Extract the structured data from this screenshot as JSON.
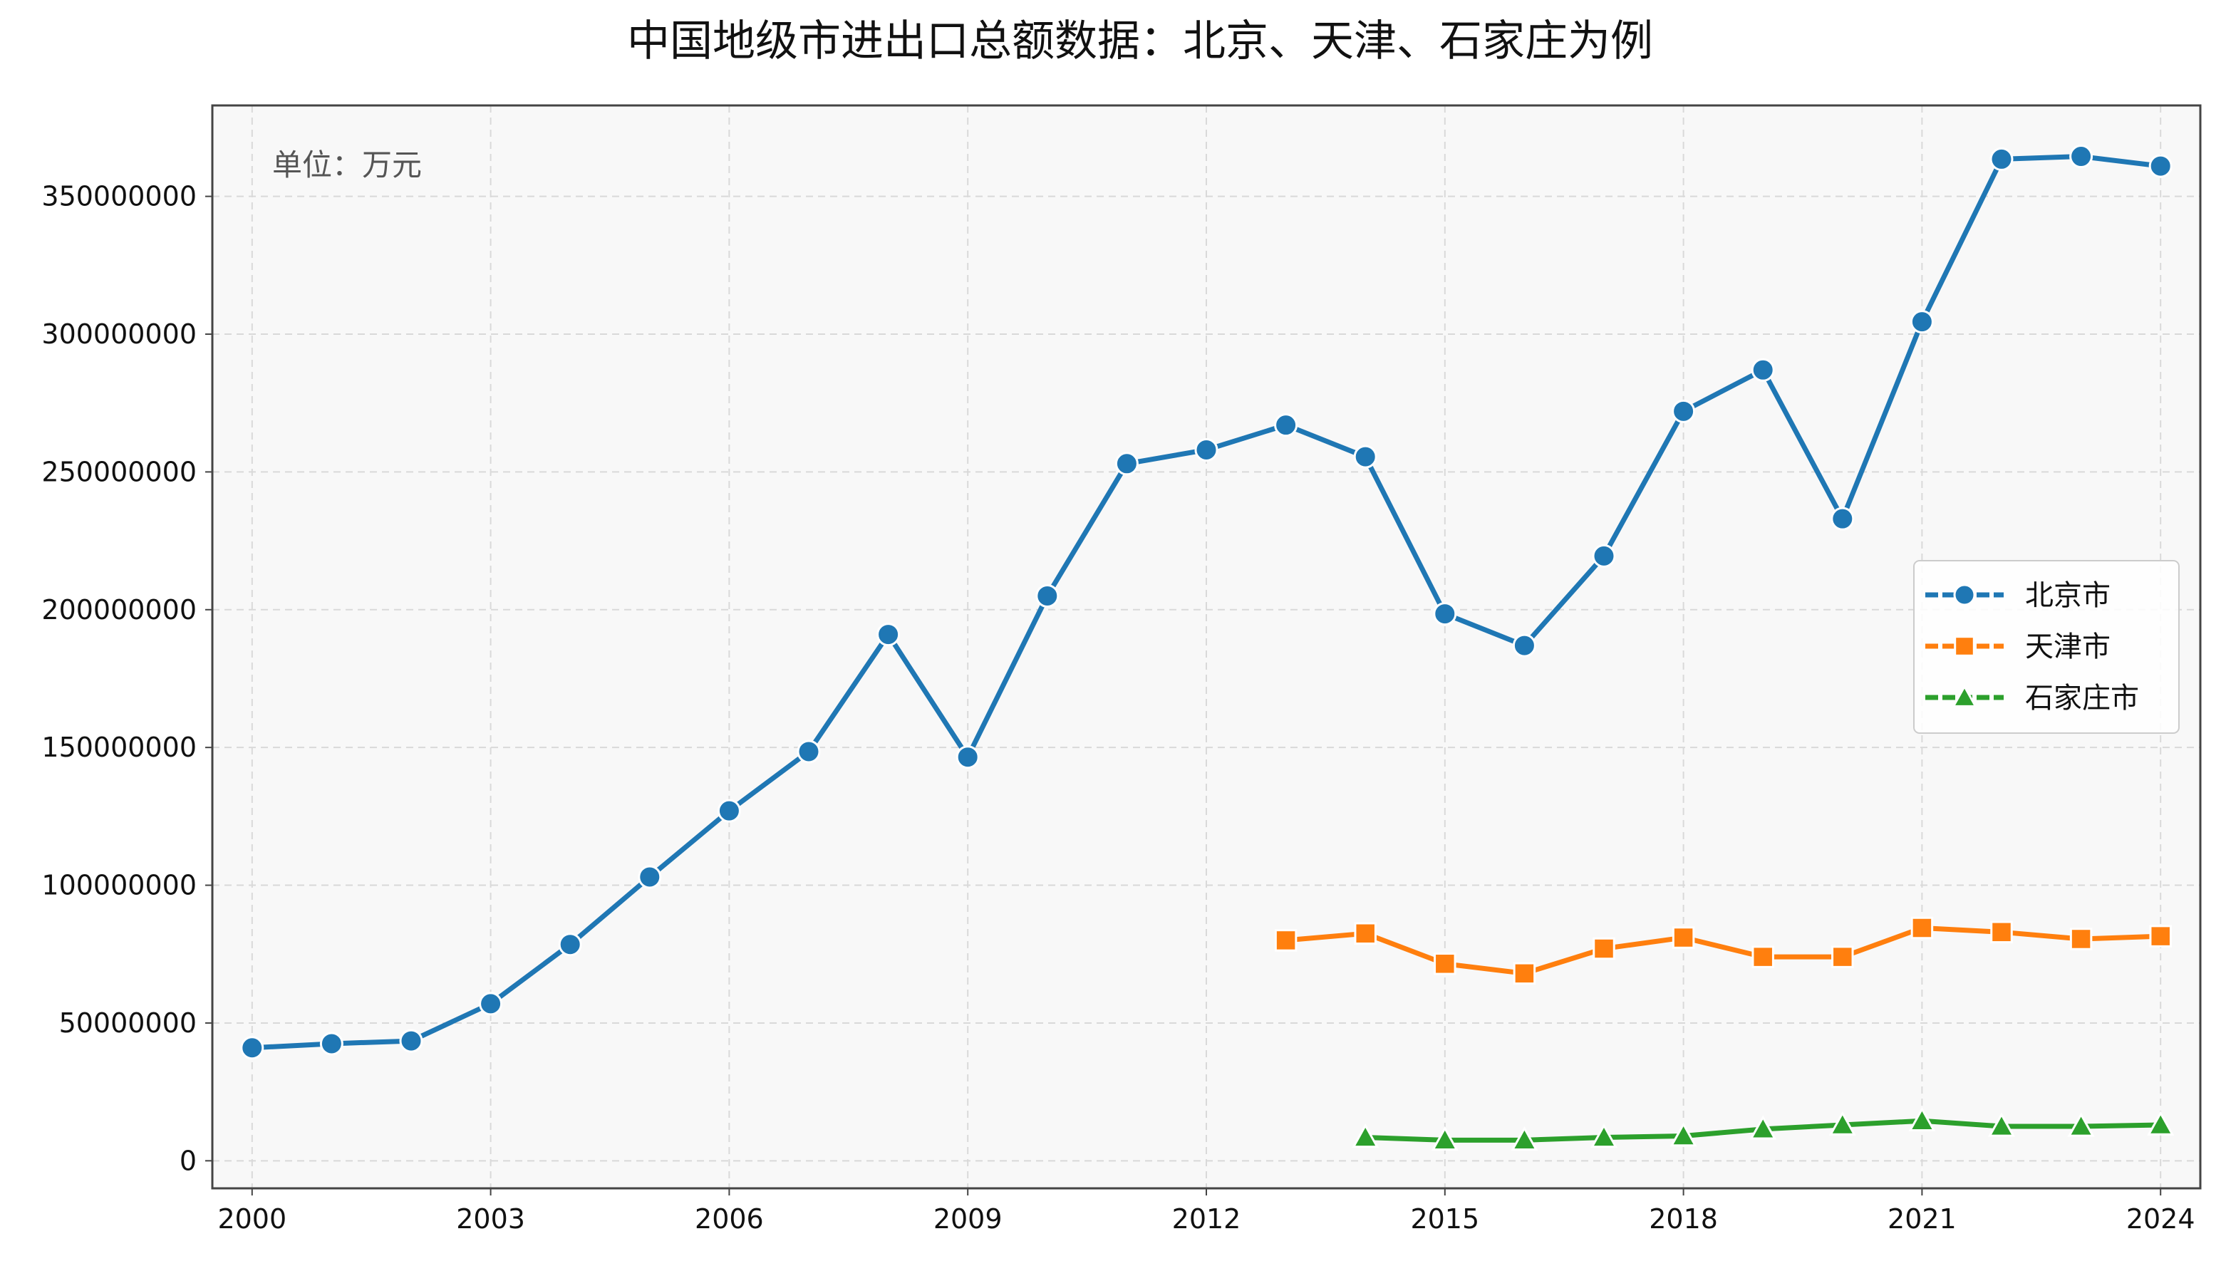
{
  "chart_data": {
    "type": "line",
    "title": "中国地级市进出口总额数据：北京、天津、石家庄为例",
    "unit_note": "单位：万元",
    "xlabel": "",
    "ylabel": "",
    "xlim": [
      1999.5,
      2024.5
    ],
    "ylim": [
      -10000000,
      383000000
    ],
    "x_ticks": [
      2000,
      2003,
      2006,
      2009,
      2012,
      2015,
      2018,
      2021,
      2024
    ],
    "y_ticks": [
      0,
      50000000,
      100000000,
      150000000,
      200000000,
      250000000,
      300000000,
      350000000
    ],
    "grid": true,
    "legend_position": "center-right",
    "series": [
      {
        "name": "北京市",
        "color": "#1f77b4",
        "marker": "circle",
        "x": [
          2000,
          2001,
          2002,
          2003,
          2004,
          2005,
          2006,
          2007,
          2008,
          2009,
          2010,
          2011,
          2012,
          2013,
          2014,
          2015,
          2016,
          2017,
          2018,
          2019,
          2020,
          2021,
          2022,
          2023,
          2024
        ],
        "y": [
          41000000,
          42500000,
          43500000,
          57000000,
          78500000,
          103000000,
          127000000,
          148500000,
          191000000,
          146500000,
          205000000,
          253000000,
          258000000,
          267000000,
          255500000,
          198500000,
          187000000,
          219500000,
          272000000,
          287000000,
          233000000,
          304500000,
          363500000,
          364500000,
          361000000
        ]
      },
      {
        "name": "天津市",
        "color": "#ff7f0e",
        "marker": "square",
        "x": [
          2013,
          2014,
          2015,
          2016,
          2017,
          2018,
          2019,
          2020,
          2021,
          2022,
          2023,
          2024
        ],
        "y": [
          80000000,
          82500000,
          71500000,
          68000000,
          77000000,
          81000000,
          74000000,
          74000000,
          84500000,
          83000000,
          80500000,
          81500000
        ]
      },
      {
        "name": "石家庄市",
        "color": "#2ca02c",
        "marker": "triangle",
        "x": [
          2014,
          2015,
          2016,
          2017,
          2018,
          2019,
          2020,
          2021,
          2022,
          2023,
          2024
        ],
        "y": [
          8500000,
          7500000,
          7500000,
          8500000,
          9000000,
          11500000,
          13000000,
          14500000,
          12500000,
          12500000,
          13000000
        ]
      }
    ]
  }
}
